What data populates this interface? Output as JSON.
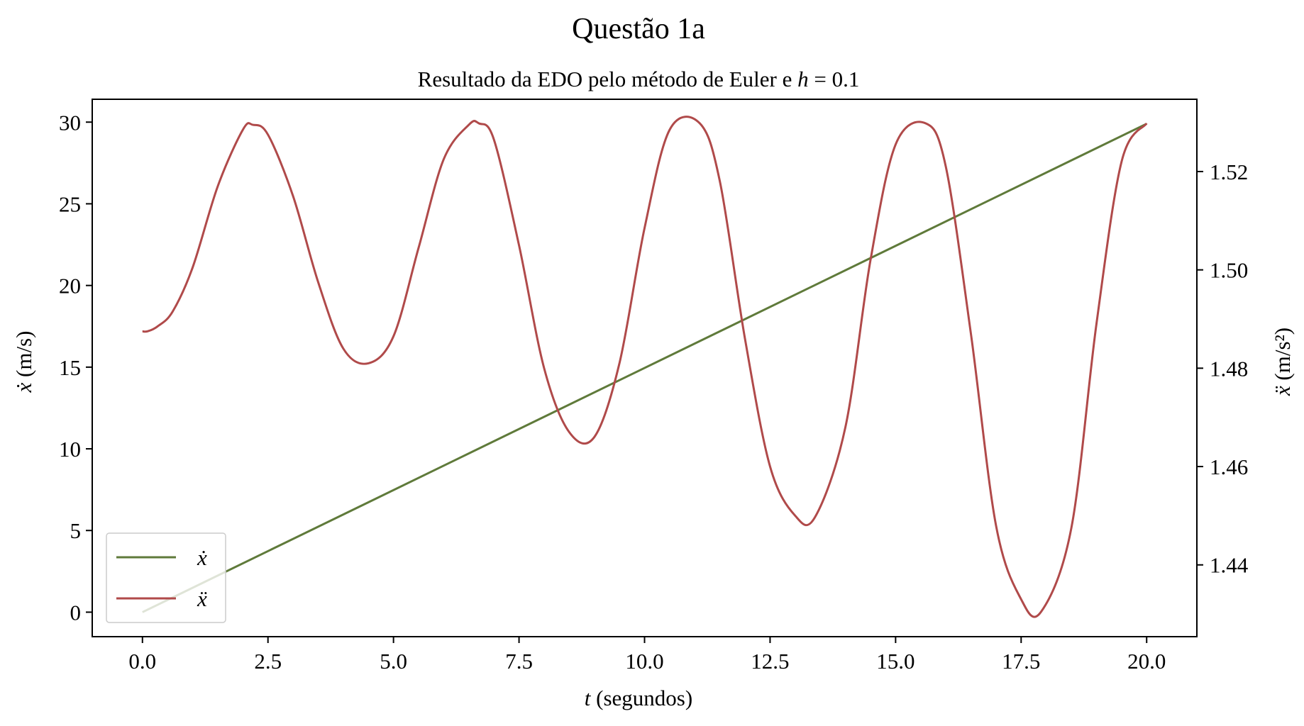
{
  "title": "Questão 1a",
  "subtitle": "Resultado da EDO pelo método de Euler e h = 0.1",
  "subtitle_parts": {
    "prefix": "Resultado da EDO pelo método de Euler e ",
    "var": "h",
    "rest": " = 0.1"
  },
  "xlabel_parts": {
    "var": "t",
    "rest": " (segundos)"
  },
  "ylabel_left_parts": {
    "var": "ẋ",
    "rest": " (m/s)"
  },
  "ylabel_right_parts": {
    "var": "ẍ",
    "rest": " (m/s²)"
  },
  "colors": {
    "xdot": "#5f7a3a",
    "xddot": "#b04a4a",
    "axes": "#000000"
  },
  "chart_data": {
    "type": "line",
    "title": "Questão 1a",
    "subtitle": "Resultado da EDO pelo método de Euler e h = 0.1",
    "xlabel": "t (segundos)",
    "ylabel_left": "ẋ (m/s)",
    "ylabel_right": "ẍ (m/s²)",
    "xlim": [
      -1.0,
      21.0
    ],
    "ylim_left": [
      -1.5,
      31.4
    ],
    "ylim_right": [
      1.4254,
      1.5347
    ],
    "xticks": [
      "0.0",
      "2.5",
      "5.0",
      "7.5",
      "10.0",
      "12.5",
      "15.0",
      "17.5",
      "20.0"
    ],
    "yticks_left": [
      "0",
      "5",
      "10",
      "15",
      "20",
      "25",
      "30"
    ],
    "yticks_right": [
      "1.44",
      "1.46",
      "1.48",
      "1.50",
      "1.52"
    ],
    "grid": false,
    "legend_position": "lower left",
    "series": [
      {
        "name": "ẋ",
        "axis": "left",
        "x": [
          0,
          20
        ],
        "y": [
          0,
          29.9
        ]
      },
      {
        "name": "ẍ",
        "axis": "right",
        "x": [
          0.0,
          0.1,
          0.3,
          0.6,
          1.0,
          1.5,
          2.0,
          2.2,
          2.5,
          3.0,
          3.5,
          4.0,
          4.5,
          5.0,
          5.5,
          6.0,
          6.5,
          6.7,
          7.0,
          7.5,
          8.0,
          8.5,
          9.0,
          9.5,
          10.0,
          10.5,
          11.1,
          11.5,
          12.0,
          12.5,
          13.0,
          13.4,
          14.0,
          14.5,
          15.0,
          15.6,
          16.0,
          16.5,
          17.0,
          17.5,
          17.9,
          18.5,
          19.0,
          19.5,
          20.0
        ],
        "y": [
          1.4875,
          1.4875,
          1.4885,
          1.4915,
          1.5005,
          1.517,
          1.5285,
          1.5295,
          1.5275,
          1.515,
          1.4975,
          1.484,
          1.481,
          1.4865,
          1.5045,
          1.5225,
          1.5295,
          1.5298,
          1.5265,
          1.505,
          1.48,
          1.467,
          1.466,
          1.481,
          1.5085,
          1.5285,
          1.5298,
          1.518,
          1.486,
          1.46,
          1.45,
          1.4498,
          1.468,
          1.502,
          1.5255,
          1.5298,
          1.521,
          1.487,
          1.448,
          1.433,
          1.4305,
          1.4475,
          1.489,
          1.522,
          1.5298
        ]
      }
    ]
  }
}
